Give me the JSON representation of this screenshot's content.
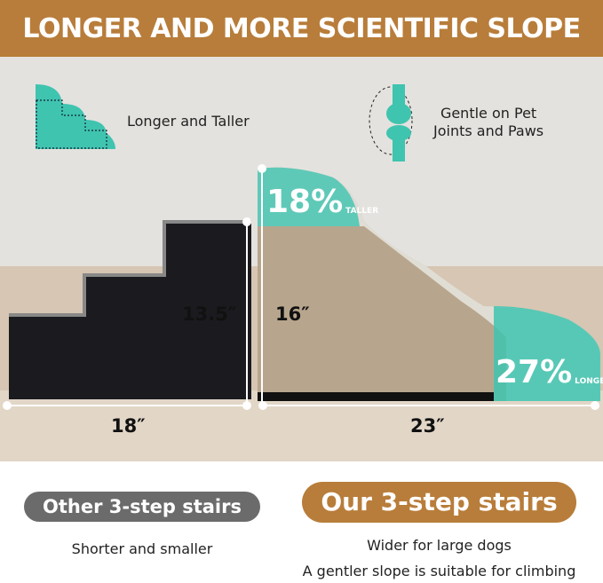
{
  "header": {
    "title": "LONGER AND MORE SCIENTIFIC SLOPE"
  },
  "features": [
    {
      "icon": "stair-outline-icon",
      "label": "Longer and Taller"
    },
    {
      "icon": "joint-bone-icon",
      "label_line1": "Gentle on Pet",
      "label_line2": "Joints and Paws"
    }
  ],
  "other_stairs": {
    "height": "13.5″",
    "length": "18″"
  },
  "our_stairs": {
    "height": "16″",
    "length": "23″",
    "taller_pct": "18%",
    "taller_label": "TALLER",
    "longer_pct": "27%",
    "longer_label": "LONGER"
  },
  "comparison": {
    "other_label": "Other 3-step stairs",
    "other_desc": "Shorter and smaller",
    "ours_label": "Our 3-step stairs",
    "ours_desc_1": "Wider for large dogs",
    "ours_desc_2": "A gentler slope is suitable for climbing"
  },
  "colors": {
    "brand": "#b87d3a",
    "teal": "#3fc4b0",
    "grey_pill": "#6b6b6b"
  }
}
